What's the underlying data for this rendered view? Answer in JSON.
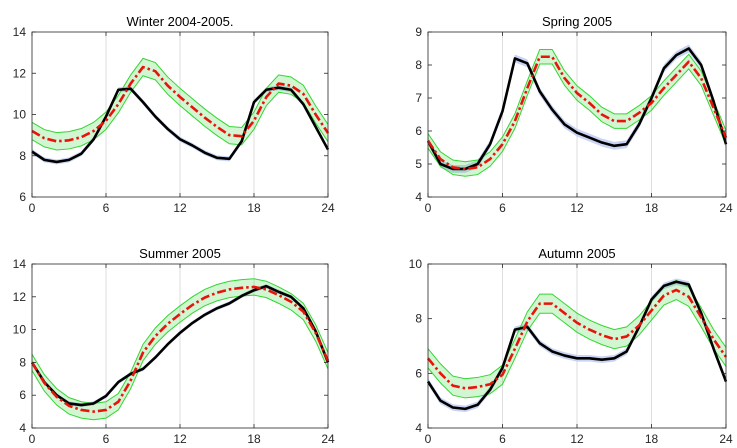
{
  "chart_data": [
    {
      "type": "line",
      "title": "Winter 2004-2005.",
      "xlim": [
        0,
        24
      ],
      "ylim": [
        6,
        14
      ],
      "xticks": [
        0,
        6,
        12,
        18,
        24
      ],
      "yticks": [
        6,
        8,
        10,
        12,
        14
      ],
      "grid": "vertical",
      "x": [
        0,
        1,
        2,
        3,
        4,
        5,
        6,
        7,
        8,
        9,
        10,
        11,
        12,
        13,
        14,
        15,
        16,
        17,
        18,
        19,
        20,
        21,
        22,
        23,
        24
      ],
      "series": [
        {
          "role": "observed",
          "color": "#000000",
          "band_color": "#c0cdf2",
          "values": [
            8.2,
            7.8,
            7.7,
            7.8,
            8.1,
            8.8,
            9.9,
            11.2,
            11.25,
            10.6,
            9.9,
            9.3,
            8.8,
            8.5,
            8.15,
            7.9,
            7.85,
            8.7,
            10.6,
            11.2,
            11.3,
            11.2,
            10.5,
            9.4,
            8.3
          ]
        },
        {
          "role": "predicted",
          "color": "#e8140c",
          "band_color": "#33d633",
          "values": [
            9.2,
            8.85,
            8.7,
            8.75,
            8.9,
            9.2,
            9.7,
            10.5,
            11.5,
            12.3,
            12.1,
            11.4,
            10.85,
            10.35,
            9.85,
            9.4,
            9.0,
            8.95,
            9.7,
            10.85,
            11.5,
            11.4,
            11.0,
            10.0,
            9.1
          ],
          "band": 0.42
        }
      ]
    },
    {
      "type": "line",
      "title": "Spring 2005",
      "xlim": [
        0,
        24
      ],
      "ylim": [
        4,
        9
      ],
      "xticks": [
        0,
        6,
        12,
        18,
        24
      ],
      "yticks": [
        4,
        5,
        6,
        7,
        8,
        9
      ],
      "grid": "vertical",
      "x": [
        0,
        1,
        2,
        3,
        4,
        5,
        6,
        7,
        8,
        9,
        10,
        11,
        12,
        13,
        14,
        15,
        16,
        17,
        18,
        19,
        20,
        21,
        22,
        23,
        24
      ],
      "series": [
        {
          "role": "observed",
          "color": "#000000",
          "band_color": "#c0cdf2",
          "values": [
            5.7,
            5.0,
            4.85,
            4.85,
            5.0,
            5.6,
            6.6,
            8.2,
            8.05,
            7.2,
            6.65,
            6.2,
            5.95,
            5.8,
            5.65,
            5.55,
            5.6,
            6.2,
            7.0,
            7.9,
            8.3,
            8.5,
            8.0,
            6.9,
            5.6
          ]
        },
        {
          "role": "predicted",
          "color": "#e8140c",
          "band_color": "#33d633",
          "values": [
            5.7,
            5.15,
            4.9,
            4.85,
            4.9,
            5.15,
            5.6,
            6.3,
            7.3,
            8.25,
            8.25,
            7.6,
            7.15,
            6.85,
            6.5,
            6.3,
            6.3,
            6.55,
            6.85,
            7.3,
            7.7,
            8.1,
            7.6,
            6.7,
            5.8
          ],
          "band": 0.22
        }
      ]
    },
    {
      "type": "line",
      "title": "Summer 2005",
      "xlim": [
        0,
        24
      ],
      "ylim": [
        4,
        14
      ],
      "xticks": [
        0,
        6,
        12,
        18,
        24
      ],
      "yticks": [
        4,
        6,
        8,
        10,
        12,
        14
      ],
      "grid": "vertical",
      "x": [
        0,
        1,
        2,
        3,
        4,
        5,
        6,
        7,
        8,
        9,
        10,
        11,
        12,
        13,
        14,
        15,
        16,
        17,
        18,
        19,
        20,
        21,
        22,
        23,
        24
      ],
      "series": [
        {
          "role": "observed",
          "color": "#000000",
          "band_color": "#c0cdf2",
          "values": [
            8.0,
            6.8,
            6.0,
            5.5,
            5.4,
            5.5,
            5.95,
            6.8,
            7.3,
            7.6,
            8.3,
            9.1,
            9.8,
            10.4,
            10.9,
            11.3,
            11.6,
            12.05,
            12.4,
            12.65,
            12.3,
            12.0,
            11.3,
            9.9,
            8.0
          ]
        },
        {
          "role": "predicted",
          "color": "#e8140c",
          "band_color": "#33d633",
          "values": [
            8.0,
            6.75,
            5.9,
            5.35,
            5.1,
            5.0,
            5.1,
            5.6,
            6.9,
            8.6,
            9.6,
            10.35,
            10.95,
            11.5,
            11.95,
            12.25,
            12.45,
            12.55,
            12.6,
            12.45,
            12.1,
            11.7,
            11.1,
            9.8,
            8.1
          ],
          "band": 0.5
        }
      ]
    },
    {
      "type": "line",
      "title": "Autumn 2005",
      "xlim": [
        0,
        24
      ],
      "ylim": [
        4,
        10
      ],
      "xticks": [
        0,
        6,
        12,
        18,
        24
      ],
      "yticks": [
        4,
        6,
        8,
        10
      ],
      "grid": "vertical",
      "x": [
        0,
        1,
        2,
        3,
        4,
        5,
        6,
        7,
        8,
        9,
        10,
        11,
        12,
        13,
        14,
        15,
        16,
        17,
        18,
        19,
        20,
        21,
        22,
        23,
        24
      ],
      "series": [
        {
          "role": "observed",
          "color": "#000000",
          "band_color": "#c0cdf2",
          "values": [
            5.7,
            5.0,
            4.75,
            4.7,
            4.85,
            5.4,
            6.2,
            7.6,
            7.7,
            7.1,
            6.8,
            6.65,
            6.55,
            6.55,
            6.5,
            6.55,
            6.8,
            7.7,
            8.7,
            9.2,
            9.35,
            9.25,
            8.2,
            6.9,
            5.7
          ]
        },
        {
          "role": "predicted",
          "color": "#e8140c",
          "band_color": "#33d633",
          "values": [
            6.55,
            6.0,
            5.55,
            5.45,
            5.5,
            5.6,
            5.95,
            6.9,
            7.9,
            8.55,
            8.55,
            8.2,
            7.85,
            7.6,
            7.4,
            7.25,
            7.35,
            7.75,
            8.3,
            8.85,
            9.05,
            8.8,
            8.05,
            7.25,
            6.6
          ],
          "band": 0.35
        }
      ]
    }
  ]
}
